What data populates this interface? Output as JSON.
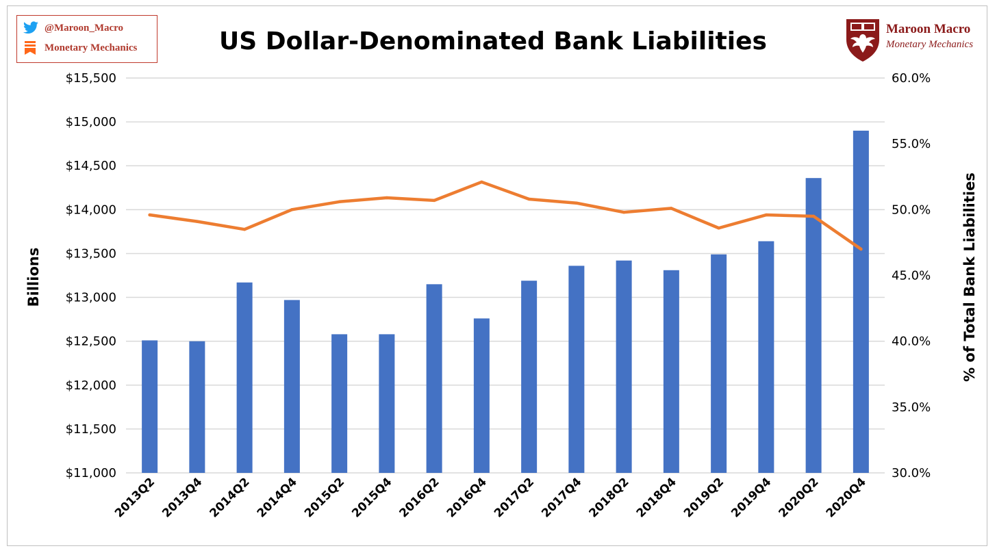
{
  "badge": {
    "handle": "@Maroon_Macro",
    "substack": "Monetary Mechanics",
    "colors": {
      "twitter": "#1da1f2",
      "substack": "#ff6719",
      "text": "#b03a2e"
    }
  },
  "brand": {
    "name": "Maroon Macro",
    "subtitle": "Monetary Mechanics",
    "color": "#8b1a1a"
  },
  "chart_data": {
    "type": "bar",
    "title": "US Dollar-Denominated Bank Liabilities",
    "categories": [
      "2013Q2",
      "2013Q4",
      "2014Q2",
      "2014Q4",
      "2015Q2",
      "2015Q4",
      "2016Q2",
      "2016Q4",
      "2017Q2",
      "2017Q4",
      "2018Q2",
      "2018Q4",
      "2019Q2",
      "2019Q4",
      "2020Q2",
      "2020Q4"
    ],
    "series": [
      {
        "type": "bar",
        "axis": "left",
        "color": "#4472c4",
        "values": [
          12510,
          12500,
          13170,
          12970,
          12580,
          12580,
          13150,
          12760,
          13190,
          13360,
          13420,
          13310,
          13490,
          13640,
          14360,
          14900
        ]
      },
      {
        "type": "line",
        "axis": "right",
        "color": "#ed7d31",
        "values": [
          49.6,
          49.1,
          48.5,
          50.0,
          50.6,
          50.9,
          50.7,
          52.1,
          50.8,
          50.5,
          49.8,
          50.1,
          48.6,
          49.6,
          49.5,
          47.0
        ]
      }
    ],
    "ylabel": "Billions",
    "y2label": "% of Total Bank Liabilities",
    "ylim": [
      11000,
      15500
    ],
    "y2lim": [
      30.0,
      60.0
    ],
    "yticks": [
      "$11,000",
      "$11,500",
      "$12,000",
      "$12,500",
      "$13,000",
      "$13,500",
      "$14,000",
      "$14,500",
      "$15,000",
      "$15,500"
    ],
    "y2ticks": [
      "30.0%",
      "35.0%",
      "40.0%",
      "45.0%",
      "50.0%",
      "55.0%",
      "60.0%"
    ],
    "grid": true,
    "legend": "none"
  }
}
